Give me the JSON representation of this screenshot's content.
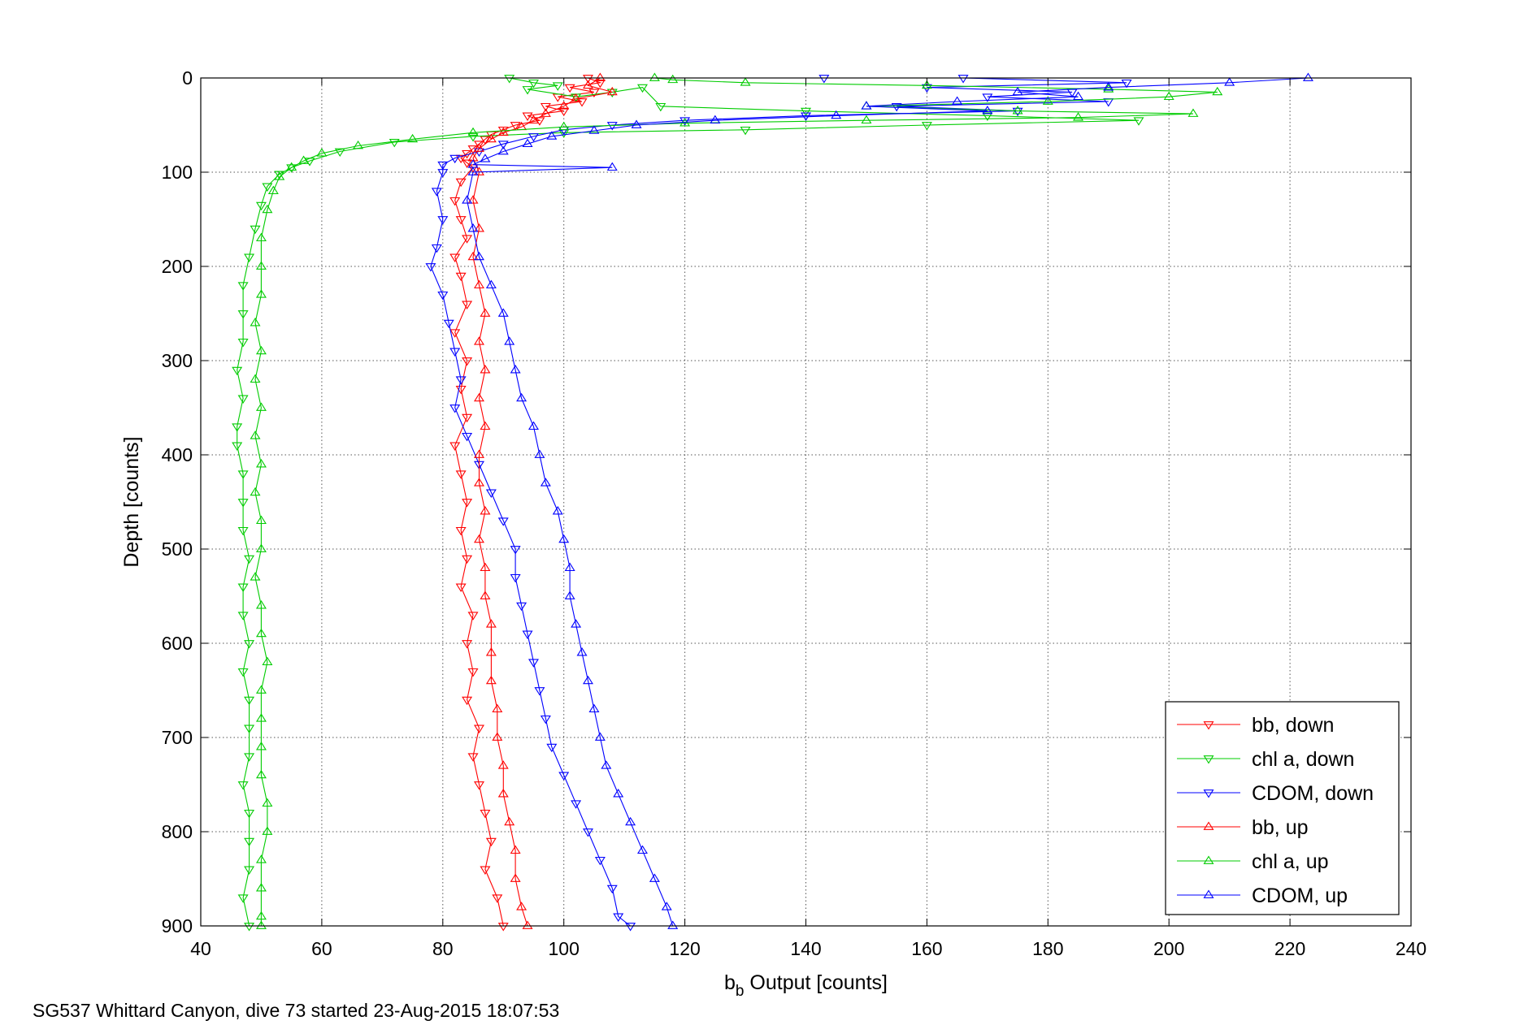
{
  "chart_data": {
    "type": "scatter",
    "title": "",
    "xlabel": {
      "main": "b",
      "sub": "b",
      "rest": " Output [counts]"
    },
    "ylabel": "Depth [counts]",
    "xlim": [
      40,
      240
    ],
    "ylim": [
      0,
      900
    ],
    "y_reversed": true,
    "grid": true,
    "legend_position": "bottom-right",
    "xticks": [
      "40",
      "60",
      "80",
      "100",
      "120",
      "140",
      "160",
      "180",
      "200",
      "220",
      "240"
    ],
    "yticks": [
      "0",
      "100",
      "200",
      "300",
      "400",
      "500",
      "600",
      "700",
      "800",
      "900"
    ],
    "footer": "SG537 Whittard Canyon, dive 73 started 23-Aug-2015 18:07:53",
    "series": [
      {
        "name": "bb, down",
        "color": "#ff0000",
        "marker": "triangle-down",
        "connected": true,
        "points": [
          [
            104,
            0
          ],
          [
            106,
            5
          ],
          [
            101,
            10
          ],
          [
            105,
            15
          ],
          [
            99,
            20
          ],
          [
            103,
            25
          ],
          [
            97,
            30
          ],
          [
            100,
            35
          ],
          [
            94,
            40
          ],
          [
            96,
            45
          ],
          [
            92,
            50
          ],
          [
            90,
            55
          ],
          [
            88,
            60
          ],
          [
            87,
            65
          ],
          [
            86,
            70
          ],
          [
            85,
            75
          ],
          [
            84,
            80
          ],
          [
            83,
            85
          ],
          [
            84,
            90
          ],
          [
            85,
            95
          ],
          [
            83,
            110
          ],
          [
            82,
            130
          ],
          [
            83,
            150
          ],
          [
            84,
            170
          ],
          [
            82,
            190
          ],
          [
            83,
            210
          ],
          [
            84,
            240
          ],
          [
            82,
            270
          ],
          [
            84,
            300
          ],
          [
            83,
            330
          ],
          [
            84,
            360
          ],
          [
            82,
            390
          ],
          [
            83,
            420
          ],
          [
            84,
            450
          ],
          [
            83,
            480
          ],
          [
            84,
            510
          ],
          [
            83,
            540
          ],
          [
            85,
            570
          ],
          [
            84,
            600
          ],
          [
            85,
            630
          ],
          [
            84,
            660
          ],
          [
            86,
            690
          ],
          [
            85,
            720
          ],
          [
            86,
            750
          ],
          [
            87,
            780
          ],
          [
            88,
            810
          ],
          [
            87,
            840
          ],
          [
            89,
            870
          ],
          [
            90,
            900
          ]
        ]
      },
      {
        "name": "chl a, down",
        "color": "#00cc00",
        "marker": "triangle-down",
        "connected": true,
        "points": [
          [
            91,
            0
          ],
          [
            95,
            5
          ],
          [
            99,
            8
          ],
          [
            94,
            12
          ],
          [
            102,
            20
          ],
          [
            108,
            15
          ],
          [
            113,
            10
          ],
          [
            116,
            30
          ],
          [
            140,
            35
          ],
          [
            170,
            40
          ],
          [
            195,
            45
          ],
          [
            160,
            50
          ],
          [
            130,
            55
          ],
          [
            100,
            58
          ],
          [
            85,
            62
          ],
          [
            72,
            68
          ],
          [
            63,
            78
          ],
          [
            58,
            88
          ],
          [
            55,
            95
          ],
          [
            53,
            102
          ],
          [
            51,
            115
          ],
          [
            50,
            135
          ],
          [
            49,
            160
          ],
          [
            48,
            190
          ],
          [
            47,
            220
          ],
          [
            47,
            250
          ],
          [
            47,
            280
          ],
          [
            46,
            310
          ],
          [
            47,
            340
          ],
          [
            46,
            370
          ],
          [
            46,
            390
          ],
          [
            47,
            420
          ],
          [
            47,
            450
          ],
          [
            47,
            480
          ],
          [
            48,
            510
          ],
          [
            47,
            540
          ],
          [
            47,
            570
          ],
          [
            48,
            600
          ],
          [
            47,
            630
          ],
          [
            48,
            660
          ],
          [
            48,
            690
          ],
          [
            48,
            720
          ],
          [
            47,
            750
          ],
          [
            48,
            780
          ],
          [
            48,
            810
          ],
          [
            48,
            840
          ],
          [
            47,
            870
          ],
          [
            48,
            900
          ]
        ]
      },
      {
        "name": "CDOM, down",
        "color": "#0000ff",
        "marker": "triangle-down",
        "connected": true,
        "points": [
          [
            143,
            0
          ],
          [
            166,
            0
          ],
          [
            193,
            5
          ],
          [
            160,
            10
          ],
          [
            184,
            15
          ],
          [
            170,
            20
          ],
          [
            190,
            25
          ],
          [
            155,
            30
          ],
          [
            175,
            35
          ],
          [
            140,
            40
          ],
          [
            120,
            45
          ],
          [
            108,
            50
          ],
          [
            100,
            55
          ],
          [
            95,
            62
          ],
          [
            90,
            70
          ],
          [
            86,
            78
          ],
          [
            82,
            85
          ],
          [
            80,
            92
          ],
          [
            80,
            100
          ],
          [
            79,
            120
          ],
          [
            80,
            150
          ],
          [
            79,
            180
          ],
          [
            78,
            200
          ],
          [
            80,
            230
          ],
          [
            81,
            260
          ],
          [
            82,
            290
          ],
          [
            83,
            320
          ],
          [
            82,
            350
          ],
          [
            84,
            380
          ],
          [
            86,
            410
          ],
          [
            88,
            440
          ],
          [
            90,
            470
          ],
          [
            92,
            500
          ],
          [
            92,
            530
          ],
          [
            93,
            560
          ],
          [
            94,
            590
          ],
          [
            95,
            620
          ],
          [
            96,
            650
          ],
          [
            97,
            680
          ],
          [
            98,
            710
          ],
          [
            100,
            740
          ],
          [
            102,
            770
          ],
          [
            104,
            800
          ],
          [
            106,
            830
          ],
          [
            108,
            860
          ],
          [
            109,
            890
          ],
          [
            111,
            900
          ]
        ]
      },
      {
        "name": "bb, up",
        "color": "#ff0000",
        "marker": "triangle-up",
        "connected": true,
        "points": [
          [
            106,
            0
          ],
          [
            104,
            8
          ],
          [
            108,
            15
          ],
          [
            102,
            22
          ],
          [
            100,
            30
          ],
          [
            97,
            38
          ],
          [
            95,
            45
          ],
          [
            93,
            52
          ],
          [
            90,
            58
          ],
          [
            88,
            65
          ],
          [
            86,
            75
          ],
          [
            85,
            85
          ],
          [
            86,
            100
          ],
          [
            85,
            130
          ],
          [
            86,
            160
          ],
          [
            85,
            190
          ],
          [
            86,
            220
          ],
          [
            87,
            250
          ],
          [
            86,
            280
          ],
          [
            87,
            310
          ],
          [
            86,
            340
          ],
          [
            87,
            370
          ],
          [
            86,
            400
          ],
          [
            86,
            430
          ],
          [
            87,
            460
          ],
          [
            86,
            490
          ],
          [
            87,
            520
          ],
          [
            87,
            550
          ],
          [
            88,
            580
          ],
          [
            88,
            610
          ],
          [
            88,
            640
          ],
          [
            89,
            670
          ],
          [
            89,
            700
          ],
          [
            90,
            730
          ],
          [
            90,
            760
          ],
          [
            91,
            790
          ],
          [
            92,
            820
          ],
          [
            92,
            850
          ],
          [
            93,
            880
          ],
          [
            94,
            900
          ]
        ]
      },
      {
        "name": "chl a, up",
        "color": "#00cc00",
        "marker": "triangle-up",
        "connected": true,
        "points": [
          [
            115,
            0
          ],
          [
            118,
            2
          ],
          [
            130,
            5
          ],
          [
            160,
            8
          ],
          [
            190,
            12
          ],
          [
            208,
            15
          ],
          [
            200,
            20
          ],
          [
            180,
            25
          ],
          [
            150,
            30
          ],
          [
            175,
            35
          ],
          [
            204,
            38
          ],
          [
            185,
            42
          ],
          [
            150,
            45
          ],
          [
            120,
            48
          ],
          [
            100,
            52
          ],
          [
            85,
            58
          ],
          [
            75,
            65
          ],
          [
            66,
            72
          ],
          [
            60,
            80
          ],
          [
            57,
            88
          ],
          [
            55,
            95
          ],
          [
            53,
            105
          ],
          [
            52,
            120
          ],
          [
            51,
            140
          ],
          [
            50,
            170
          ],
          [
            50,
            200
          ],
          [
            50,
            230
          ],
          [
            49,
            260
          ],
          [
            50,
            290
          ],
          [
            49,
            320
          ],
          [
            50,
            350
          ],
          [
            49,
            380
          ],
          [
            50,
            410
          ],
          [
            49,
            440
          ],
          [
            50,
            470
          ],
          [
            50,
            500
          ],
          [
            49,
            530
          ],
          [
            50,
            560
          ],
          [
            50,
            590
          ],
          [
            51,
            620
          ],
          [
            50,
            650
          ],
          [
            50,
            680
          ],
          [
            50,
            710
          ],
          [
            50,
            740
          ],
          [
            51,
            770
          ],
          [
            51,
            800
          ],
          [
            50,
            830
          ],
          [
            50,
            860
          ],
          [
            50,
            890
          ],
          [
            50,
            900
          ]
        ]
      },
      {
        "name": "CDOM, up",
        "color": "#0000ff",
        "marker": "triangle-up",
        "connected": true,
        "points": [
          [
            223,
            0
          ],
          [
            210,
            5
          ],
          [
            190,
            10
          ],
          [
            175,
            15
          ],
          [
            185,
            20
          ],
          [
            165,
            25
          ],
          [
            150,
            30
          ],
          [
            170,
            35
          ],
          [
            145,
            40
          ],
          [
            125,
            45
          ],
          [
            112,
            50
          ],
          [
            105,
            56
          ],
          [
            98,
            62
          ],
          [
            94,
            70
          ],
          [
            90,
            78
          ],
          [
            87,
            86
          ],
          [
            85,
            92
          ],
          [
            108,
            95
          ],
          [
            85,
            100
          ],
          [
            84,
            130
          ],
          [
            85,
            160
          ],
          [
            86,
            190
          ],
          [
            88,
            220
          ],
          [
            90,
            250
          ],
          [
            91,
            280
          ],
          [
            92,
            310
          ],
          [
            93,
            340
          ],
          [
            95,
            370
          ],
          [
            96,
            400
          ],
          [
            97,
            430
          ],
          [
            99,
            460
          ],
          [
            100,
            490
          ],
          [
            101,
            520
          ],
          [
            101,
            550
          ],
          [
            102,
            580
          ],
          [
            103,
            610
          ],
          [
            104,
            640
          ],
          [
            105,
            670
          ],
          [
            106,
            700
          ],
          [
            107,
            730
          ],
          [
            109,
            760
          ],
          [
            111,
            790
          ],
          [
            113,
            820
          ],
          [
            115,
            850
          ],
          [
            117,
            880
          ],
          [
            118,
            900
          ]
        ]
      }
    ]
  }
}
